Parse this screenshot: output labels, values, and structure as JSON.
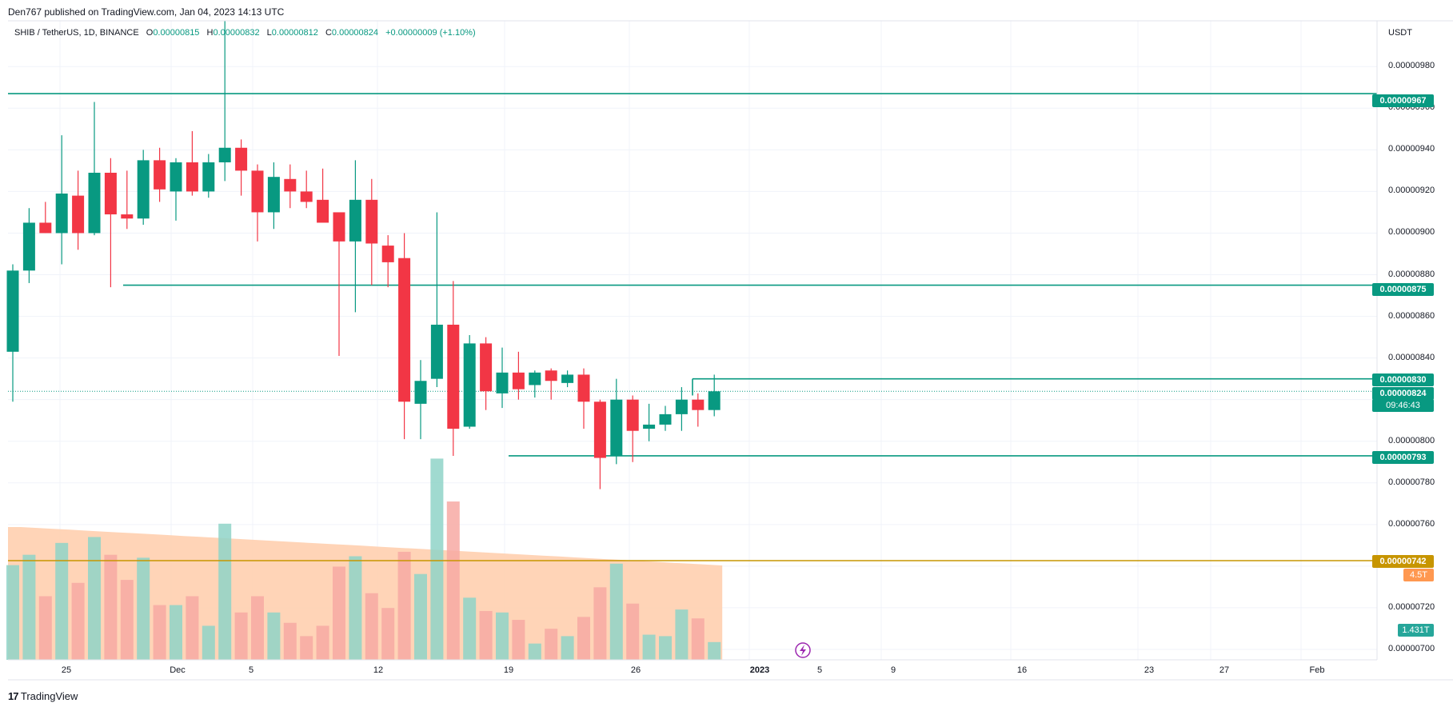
{
  "header": {
    "published_text": "Den767 published on TradingView.com, Jan 04, 2023 14:13 UTC"
  },
  "legend": {
    "symbol": "SHIB / TetherUS, 1D, BINANCE",
    "o_label": "O",
    "o_value": "0.00000815",
    "h_label": "H",
    "h_value": "0.00000832",
    "l_label": "L",
    "l_value": "0.00000812",
    "c_label": "C",
    "c_value": "0.00000824",
    "change": "+0.00000009 (+1.10%)"
  },
  "price_axis": {
    "currency": "USDT",
    "ticks": [
      "0.00000980",
      "0.00000960",
      "0.00000940",
      "0.00000920",
      "0.00000900",
      "0.00000880",
      "0.00000860",
      "0.00000840",
      "0.00000800",
      "0.00000780",
      "0.00000760",
      "0.00000720",
      "0.00000700"
    ]
  },
  "price_labels": {
    "l967": "0.00000967",
    "l875": "0.00000875",
    "l830": "0.00000830",
    "l824": "0.00000824",
    "countdown": "09:46:43",
    "l793": "0.00000793",
    "l742": "0.00000742",
    "vol_ma": "4.5T",
    "vol_last": "1.431T"
  },
  "time_axis": {
    "ticks": [
      "25",
      "Dec",
      "5",
      "12",
      "19",
      "26",
      "2023",
      "5",
      "9",
      "16",
      "23",
      "27",
      "Feb"
    ]
  },
  "colors": {
    "up": "#089981",
    "down": "#f23645",
    "level": "#089981",
    "orange_line": "#c79500",
    "volume_ma_fill": "#ffccaa"
  },
  "footer": {
    "brand": "TradingView"
  },
  "chart_data": {
    "type": "candlestick",
    "symbol": "SHIB / TetherUS",
    "interval": "1D",
    "exchange": "BINANCE",
    "ylim": [
      6.95e-06,
      1.002e-05
    ],
    "candles": [
      {
        "o": 8.43e-06,
        "h": 8.85e-06,
        "l": 8.19e-06,
        "c": 8.82e-06
      },
      {
        "o": 8.82e-06,
        "h": 9.12e-06,
        "l": 8.76e-06,
        "c": 9.05e-06
      },
      {
        "o": 9.05e-06,
        "h": 9.15e-06,
        "l": 9e-06,
        "c": 9e-06
      },
      {
        "o": 9e-06,
        "h": 9.47e-06,
        "l": 8.85e-06,
        "c": 9.19e-06
      },
      {
        "o": 9.18e-06,
        "h": 9.3e-06,
        "l": 8.92e-06,
        "c": 9e-06
      },
      {
        "o": 9e-06,
        "h": 9.63e-06,
        "l": 8.99e-06,
        "c": 9.29e-06
      },
      {
        "o": 9.29e-06,
        "h": 9.36e-06,
        "l": 8.74e-06,
        "c": 9.09e-06
      },
      {
        "o": 9.09e-06,
        "h": 9.3e-06,
        "l": 9.02e-06,
        "c": 9.07e-06
      },
      {
        "o": 9.07e-06,
        "h": 9.4e-06,
        "l": 9.04e-06,
        "c": 9.35e-06
      },
      {
        "o": 9.35e-06,
        "h": 9.41e-06,
        "l": 9.15e-06,
        "c": 9.21e-06
      },
      {
        "o": 9.2e-06,
        "h": 9.36e-06,
        "l": 9.06e-06,
        "c": 9.34e-06
      },
      {
        "o": 9.34e-06,
        "h": 9.49e-06,
        "l": 9.18e-06,
        "c": 9.2e-06
      },
      {
        "o": 9.2e-06,
        "h": 9.38e-06,
        "l": 9.17e-06,
        "c": 9.34e-06
      },
      {
        "o": 9.34e-06,
        "h": 1.002e-05,
        "l": 9.25e-06,
        "c": 9.41e-06
      },
      {
        "o": 9.41e-06,
        "h": 9.45e-06,
        "l": 9.18e-06,
        "c": 9.3e-06
      },
      {
        "o": 9.3e-06,
        "h": 9.33e-06,
        "l": 8.96e-06,
        "c": 9.1e-06
      },
      {
        "o": 9.1e-06,
        "h": 9.34e-06,
        "l": 9.02e-06,
        "c": 9.27e-06
      },
      {
        "o": 9.26e-06,
        "h": 9.33e-06,
        "l": 9.12e-06,
        "c": 9.2e-06
      },
      {
        "o": 9.2e-06,
        "h": 9.3e-06,
        "l": 9.12e-06,
        "c": 9.15e-06
      },
      {
        "o": 9.16e-06,
        "h": 9.31e-06,
        "l": 9.06e-06,
        "c": 9.05e-06
      },
      {
        "o": 9.1e-06,
        "h": 9.1e-06,
        "l": 8.41e-06,
        "c": 8.96e-06
      },
      {
        "o": 8.96e-06,
        "h": 9.35e-06,
        "l": 8.62e-06,
        "c": 9.16e-06
      },
      {
        "o": 9.16e-06,
        "h": 9.26e-06,
        "l": 8.75e-06,
        "c": 8.95e-06
      },
      {
        "o": 8.94e-06,
        "h": 8.99e-06,
        "l": 8.74e-06,
        "c": 8.86e-06
      },
      {
        "o": 8.88e-06,
        "h": 9e-06,
        "l": 8.01e-06,
        "c": 8.19e-06
      },
      {
        "o": 8.18e-06,
        "h": 8.39e-06,
        "l": 8.01e-06,
        "c": 8.29e-06
      },
      {
        "o": 8.3e-06,
        "h": 9.1e-06,
        "l": 8.26e-06,
        "c": 8.56e-06
      },
      {
        "o": 8.56e-06,
        "h": 8.77e-06,
        "l": 7.93e-06,
        "c": 8.06e-06
      },
      {
        "o": 8.07e-06,
        "h": 8.51e-06,
        "l": 8.06e-06,
        "c": 8.47e-06
      },
      {
        "o": 8.47e-06,
        "h": 8.5e-06,
        "l": 8.15e-06,
        "c": 8.24e-06
      },
      {
        "o": 8.23e-06,
        "h": 8.45e-06,
        "l": 8.16e-06,
        "c": 8.33e-06
      },
      {
        "o": 8.33e-06,
        "h": 8.43e-06,
        "l": 8.2e-06,
        "c": 8.25e-06
      },
      {
        "o": 8.27e-06,
        "h": 8.34e-06,
        "l": 8.21e-06,
        "c": 8.33e-06
      },
      {
        "o": 8.34e-06,
        "h": 8.35e-06,
        "l": 8.2e-06,
        "c": 8.29e-06
      },
      {
        "o": 8.28e-06,
        "h": 8.34e-06,
        "l": 8.26e-06,
        "c": 8.32e-06
      },
      {
        "o": 8.32e-06,
        "h": 8.35e-06,
        "l": 8.06e-06,
        "c": 8.19e-06
      },
      {
        "o": 8.19e-06,
        "h": 8.2e-06,
        "l": 7.77e-06,
        "c": 7.92e-06
      },
      {
        "o": 7.93e-06,
        "h": 8.3e-06,
        "l": 7.89e-06,
        "c": 8.2e-06
      },
      {
        "o": 8.2e-06,
        "h": 8.22e-06,
        "l": 7.9e-06,
        "c": 8.05e-06
      },
      {
        "o": 8.06e-06,
        "h": 8.18e-06,
        "l": 8e-06,
        "c": 8.08e-06
      },
      {
        "o": 8.08e-06,
        "h": 8.17e-06,
        "l": 8.05e-06,
        "c": 8.13e-06
      },
      {
        "o": 8.13e-06,
        "h": 8.26e-06,
        "l": 8.05e-06,
        "c": 8.2e-06
      },
      {
        "o": 8.2e-06,
        "h": 8.23e-06,
        "l": 8.07e-06,
        "c": 8.15e-06
      },
      {
        "o": 8.15e-06,
        "h": 8.32e-06,
        "l": 8.12e-06,
        "c": 8.24e-06
      }
    ],
    "volume_relative": [
      0.64,
      0.71,
      0.43,
      0.79,
      0.52,
      0.83,
      0.71,
      0.54,
      0.69,
      0.37,
      0.37,
      0.43,
      0.23,
      0.92,
      0.32,
      0.43,
      0.32,
      0.25,
      0.16,
      0.23,
      0.63,
      0.7,
      0.45,
      0.35,
      0.73,
      0.58,
      1.36,
      1.07,
      0.42,
      0.33,
      0.32,
      0.27,
      0.11,
      0.21,
      0.16,
      0.29,
      0.49,
      0.65,
      0.38,
      0.17,
      0.16,
      0.34,
      0.28,
      0.12
    ],
    "horizontal_levels": [
      9.67e-06,
      8.75e-06,
      8.3e-06,
      7.93e-06
    ],
    "current_price": 8.24e-06,
    "orange_level": 7.42e-06
  }
}
